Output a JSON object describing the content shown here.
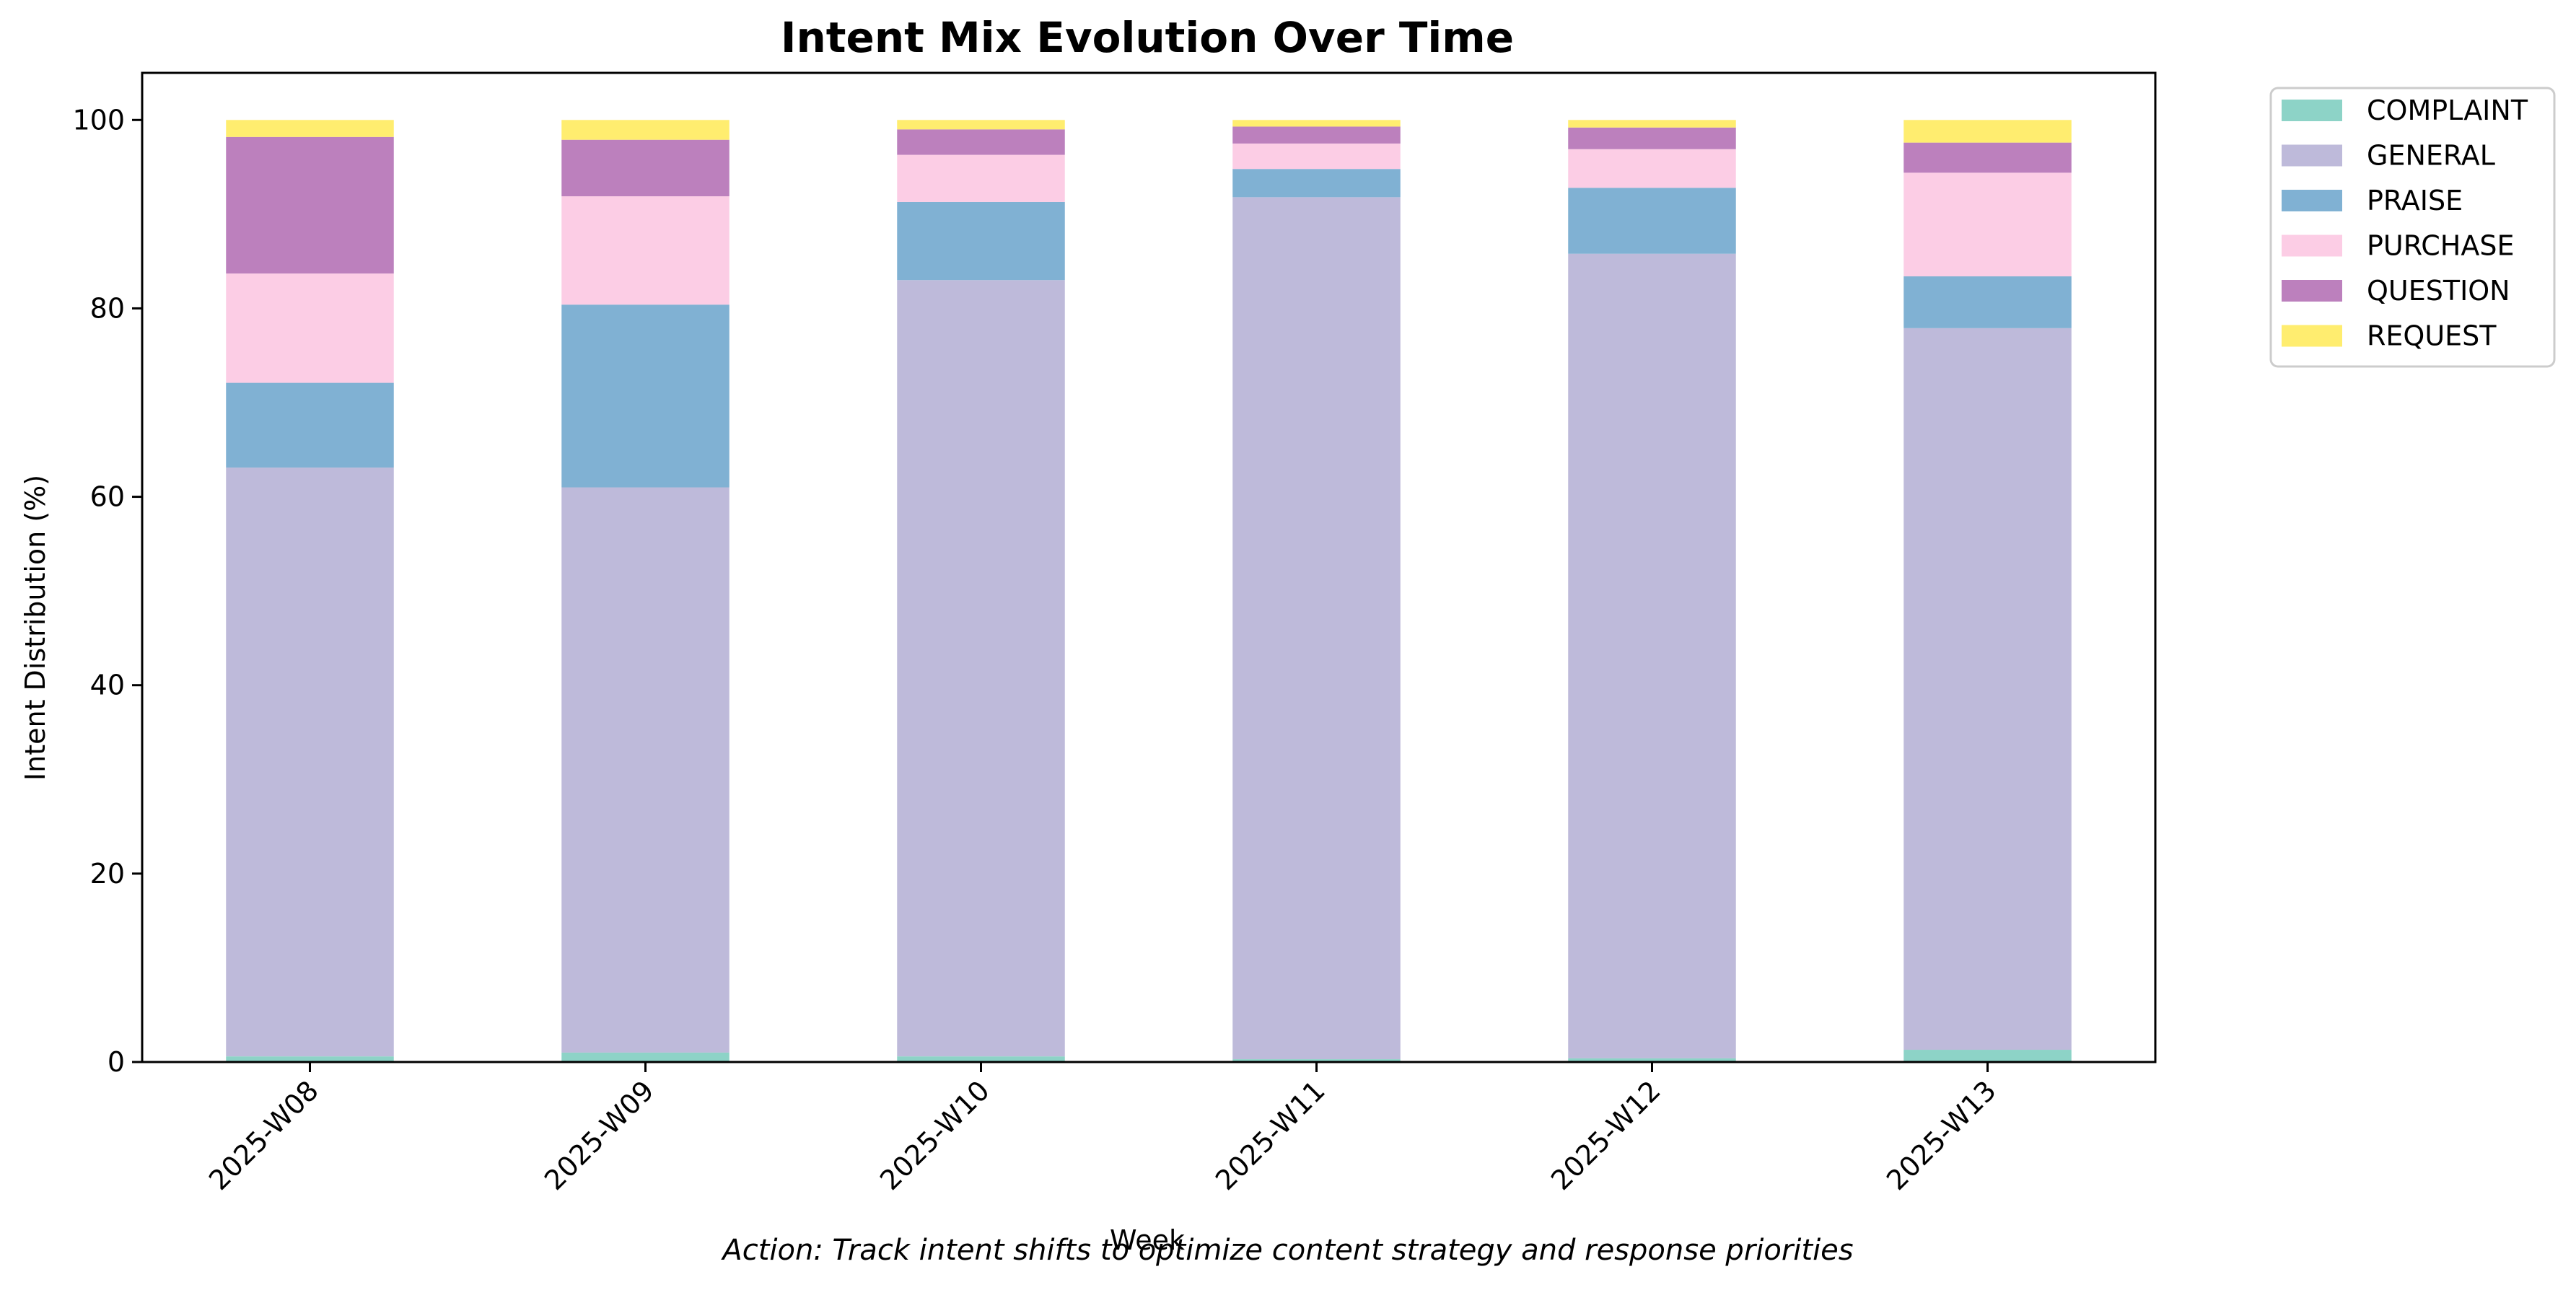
{
  "chart_data": {
    "type": "bar",
    "stacked": true,
    "title": "Intent Mix Evolution Over Time",
    "xlabel": "Week",
    "ylabel": "Intent Distribution (%)",
    "caption": "Action: Track intent shifts to optimize content strategy and response priorities",
    "ylim": [
      0,
      105
    ],
    "yticks": [
      0,
      20,
      40,
      60,
      80,
      100
    ],
    "grid": false,
    "legend_position": "outside-top-right",
    "categories": [
      "2025-W08",
      "2025-W09",
      "2025-W10",
      "2025-W11",
      "2025-W12",
      "2025-W13"
    ],
    "series": [
      {
        "name": "COMPLAINT",
        "color": "#8dd3c7",
        "values": [
          0.6,
          1.0,
          0.6,
          0.3,
          0.4,
          1.3
        ]
      },
      {
        "name": "GENERAL",
        "color": "#bebada",
        "values": [
          62.5,
          60.0,
          82.4,
          91.5,
          85.4,
          76.6
        ]
      },
      {
        "name": "PRAISE",
        "color": "#80b1d3",
        "values": [
          9.0,
          19.4,
          8.3,
          3.0,
          7.0,
          5.5
        ]
      },
      {
        "name": "PURCHASE",
        "color": "#fccde5",
        "values": [
          11.6,
          11.5,
          5.0,
          2.7,
          4.1,
          11.0
        ]
      },
      {
        "name": "QUESTION",
        "color": "#bc80bd",
        "values": [
          14.5,
          6.0,
          2.7,
          1.8,
          2.3,
          3.2
        ]
      },
      {
        "name": "REQUEST",
        "color": "#ffed6f",
        "values": [
          1.8,
          2.1,
          1.0,
          0.7,
          0.8,
          2.4
        ]
      }
    ]
  }
}
